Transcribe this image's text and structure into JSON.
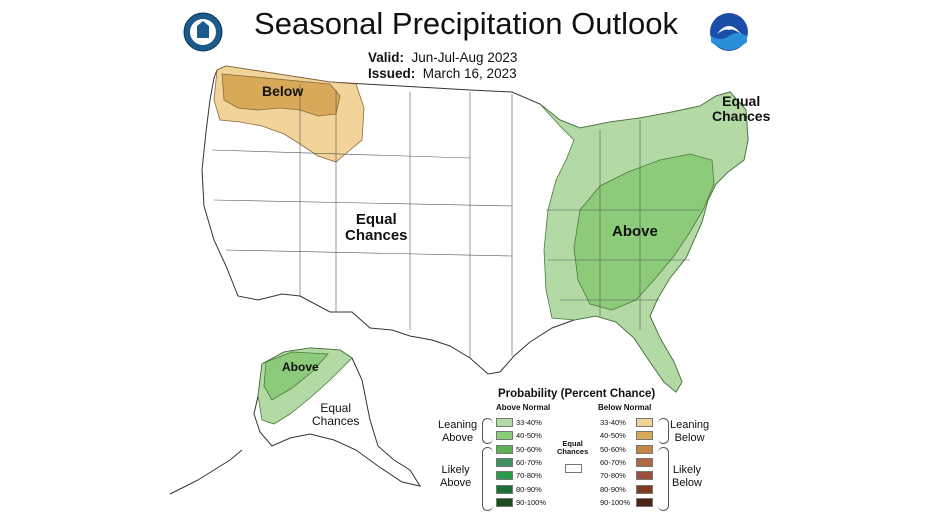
{
  "title": "Seasonal Precipitation Outlook",
  "valid_label": "Valid:",
  "valid_value": "Jun-Jul-Aug 2023",
  "issued_label": "Issued:",
  "issued_value": "March 16, 2023",
  "logos": {
    "left": "doc-seal-icon",
    "right": "noaa-logo-icon"
  },
  "map_labels": {
    "northwest": "Below",
    "west": "Equal\nChances",
    "northeast": "Equal\nChances",
    "east": "Above",
    "alaska_west": "Above",
    "alaska_center": "Equal\nChances"
  },
  "legend": {
    "title": "Probability (Percent Chance)",
    "above_header": "Above Normal",
    "below_header": "Below Normal",
    "equal_label": "Equal\nChances",
    "leaning_above": "Leaning\nAbove",
    "likely_above": "Likely\nAbove",
    "leaning_below": "Leaning\nBelow",
    "likely_below": "Likely\nBelow",
    "ranges": [
      "33-40%",
      "40-50%",
      "50-60%",
      "60-70%",
      "70-80%",
      "80-90%",
      "90-100%"
    ],
    "above_colors": [
      "#b3d9a4",
      "#8ccb7a",
      "#5eb054",
      "#3f8f60",
      "#2b9a4a",
      "#1f6e3a",
      "#1c4d1c"
    ],
    "below_colors": [
      "#f2d39a",
      "#d9a95a",
      "#c58545",
      "#b06845",
      "#9c4f38",
      "#7d3a1e",
      "#4e2418"
    ]
  }
}
